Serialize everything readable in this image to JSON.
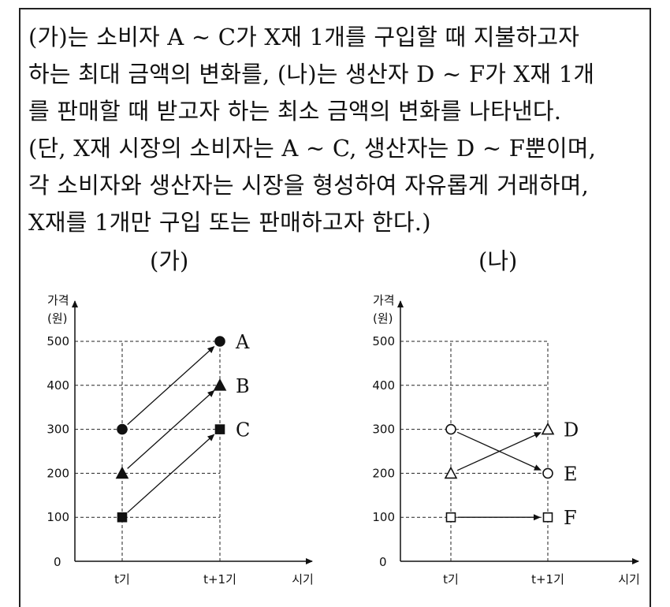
{
  "passage": [
    " (가)는 소비자 A ~ C가 X재 1개를 구입할 때 지불하고자",
    "하는 최대 금액의 변화를, (나)는 생산자 D ~ F가 X재 1개",
    "를 판매할 때 받고자 하는 최소 금액의 변화를 나타낸다.",
    "(단, X재 시장의 소비자는 A ~ C, 생산자는 D ~ F뿐이며,",
    "각 소비자와 생산자는 시장을 형성하여 자유롭게 거래하며,",
    "X재를 1개만 구입 또는 판매하고자 한다.)"
  ],
  "chart_data": [
    {
      "type": "scatter",
      "title": "(가)",
      "ylabel": "가격\n(원)",
      "ylabel_lines": [
        "가격",
        "(원)"
      ],
      "xlabel": "시기",
      "origin_label": "0",
      "categories": [
        "t기",
        "t+1기"
      ],
      "yticks": [
        100,
        200,
        300,
        400,
        500
      ],
      "ylim": [
        0,
        500
      ],
      "series": [
        {
          "name": "A",
          "marker": "filled-circle",
          "values": [
            300,
            500
          ]
        },
        {
          "name": "B",
          "marker": "filled-triangle",
          "values": [
            200,
            400
          ]
        },
        {
          "name": "C",
          "marker": "filled-square",
          "values": [
            100,
            300
          ]
        }
      ]
    },
    {
      "type": "scatter",
      "title": "(나)",
      "ylabel": "가격\n(원)",
      "ylabel_lines": [
        "가격",
        "(원)"
      ],
      "xlabel": "시기",
      "origin_label": "0",
      "categories": [
        "t기",
        "t+1기"
      ],
      "yticks": [
        100,
        200,
        300,
        400,
        500
      ],
      "ylim": [
        0,
        500
      ],
      "series": [
        {
          "name": "D",
          "marker": "open-triangle",
          "values": [
            200,
            300
          ]
        },
        {
          "name": "E",
          "marker": "open-circle",
          "values": [
            300,
            200
          ]
        },
        {
          "name": "F",
          "marker": "open-square",
          "values": [
            100,
            100
          ]
        }
      ]
    }
  ]
}
